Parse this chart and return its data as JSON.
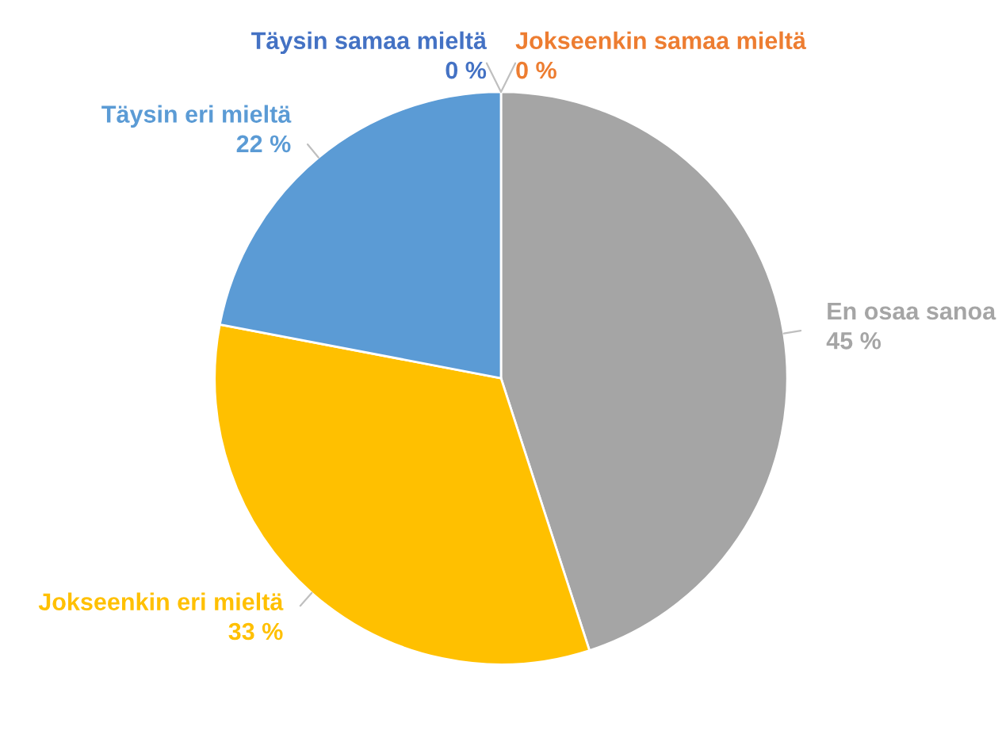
{
  "chart_data": {
    "type": "pie",
    "categories": [
      "Täysin samaa mieltä",
      "Jokseenkin samaa mieltä",
      "En osaa sanoa",
      "Jokseenkin eri mieltä",
      "Täysin eri mieltä"
    ],
    "values": [
      0,
      0,
      45,
      33,
      22
    ],
    "value_labels": [
      "0 %",
      "0 %",
      "45 %",
      "33 %",
      "22 %"
    ],
    "colors": [
      "#4472c4",
      "#ed7d31",
      "#a5a5a5",
      "#ffc000",
      "#5b9bd5"
    ],
    "legend": false
  }
}
